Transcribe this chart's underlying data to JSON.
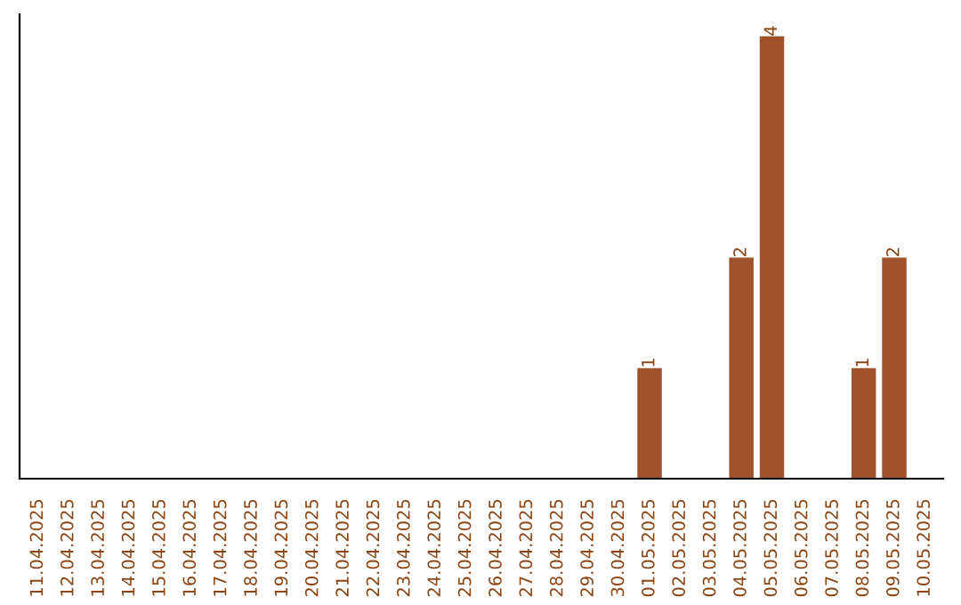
{
  "chart_data": {
    "type": "bar",
    "categories": [
      "11.04.2025",
      "12.04.2025",
      "13.04.2025",
      "14.04.2025",
      "15.04.2025",
      "16.04.2025",
      "17.04.2025",
      "18.04.2025",
      "19.04.2025",
      "20.04.2025",
      "21.04.2025",
      "22.04.2025",
      "23.04.2025",
      "24.04.2025",
      "25.04.2025",
      "26.04.2025",
      "27.04.2025",
      "28.04.2025",
      "29.04.2025",
      "30.04.2025",
      "01.05.2025",
      "02.05.2025",
      "03.05.2025",
      "04.05.2025",
      "05.05.2025",
      "06.05.2025",
      "07.05.2025",
      "08.05.2025",
      "09.05.2025",
      "10.05.2025"
    ],
    "values": [
      null,
      null,
      null,
      null,
      null,
      null,
      null,
      null,
      null,
      null,
      null,
      null,
      null,
      null,
      null,
      null,
      null,
      null,
      null,
      null,
      1,
      null,
      null,
      2,
      4,
      null,
      null,
      1,
      2,
      null
    ],
    "value_labels": [
      null,
      null,
      null,
      null,
      null,
      null,
      null,
      null,
      null,
      null,
      null,
      null,
      null,
      null,
      null,
      null,
      null,
      null,
      null,
      null,
      "1",
      null,
      null,
      "2",
      "4",
      null,
      null,
      "1",
      "2",
      null
    ],
    "color": "#a0522d",
    "ylim": [
      0,
      4.2
    ],
    "tick_labels": "x",
    "grid": false,
    "legend": false
  }
}
